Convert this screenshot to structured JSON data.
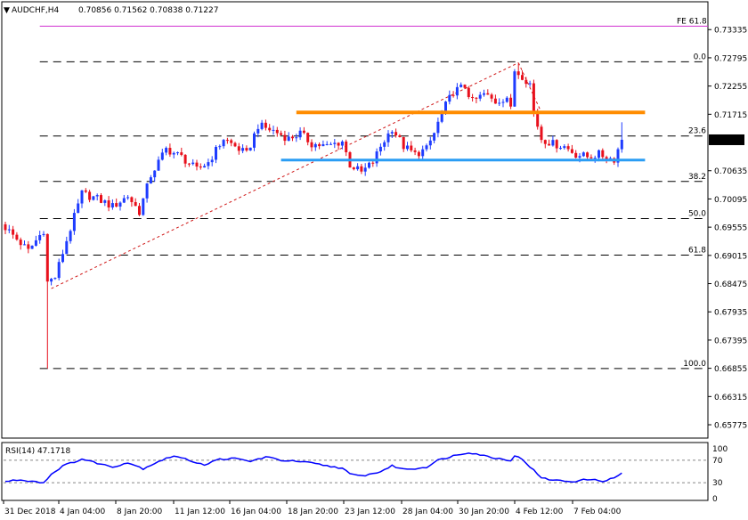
{
  "header": {
    "symbol": "AUDCHF,H4",
    "ohlc": "0.70856 0.71562 0.70838 0.71227"
  },
  "colors": {
    "bull": "#1e3cff",
    "bear": "#e8101c",
    "support": "#2a9df4",
    "resistance": "#ff8c00",
    "fe_line": "#d030d0",
    "trendline": "#d01818",
    "rsi_line": "#0000ff",
    "price_badge_bg": "#000000"
  },
  "chart_data": [
    {
      "type": "candlestick",
      "title": "AUDCHF,H4 0.70856 0.71562 0.70838 0.71227",
      "ylim": [
        0.6552,
        0.7385
      ],
      "yticks": [
        "0.73335",
        "0.72795",
        "0.72255",
        "0.71715",
        "0.71227",
        "0.70635",
        "0.70095",
        "0.69555",
        "0.69015",
        "0.68475",
        "0.67935",
        "0.67395",
        "0.66855",
        "0.66315",
        "0.65775"
      ],
      "xticks": [
        "31 Dec 2018",
        "4 Jan 04:00",
        "8 Jan 20:00",
        "11 Jan 12:00",
        "16 Jan 04:00",
        "18 Jan 20:00",
        "23 Jan 12:00",
        "28 Jan 04:00",
        "30 Jan 20:00",
        "4 Feb 12:00",
        "7 Feb 04:00"
      ],
      "last_price": "0.71227",
      "candle_count": 162,
      "close_anchors": [
        [
          0,
          0.6955
        ],
        [
          6,
          0.691
        ],
        [
          10,
          0.695
        ],
        [
          11,
          0.685
        ],
        [
          13,
          0.686
        ],
        [
          16,
          0.693
        ],
        [
          20,
          0.702
        ],
        [
          24,
          0.701
        ],
        [
          28,
          0.6995
        ],
        [
          32,
          0.7015
        ],
        [
          35,
          0.6985
        ],
        [
          38,
          0.7055
        ],
        [
          42,
          0.7105
        ],
        [
          46,
          0.709
        ],
        [
          50,
          0.7065
        ],
        [
          53,
          0.708
        ],
        [
          57,
          0.7125
        ],
        [
          60,
          0.711
        ],
        [
          63,
          0.7095
        ],
        [
          66,
          0.715
        ],
        [
          70,
          0.714
        ],
        [
          74,
          0.7125
        ],
        [
          77,
          0.7135
        ],
        [
          80,
          0.7115
        ],
        [
          84,
          0.711
        ],
        [
          88,
          0.712
        ],
        [
          90,
          0.7075
        ],
        [
          93,
          0.706
        ],
        [
          96,
          0.708
        ],
        [
          98,
          0.711
        ],
        [
          101,
          0.7145
        ],
        [
          104,
          0.711
        ],
        [
          107,
          0.7095
        ],
        [
          110,
          0.7105
        ],
        [
          112,
          0.7135
        ],
        [
          114,
          0.7175
        ],
        [
          117,
          0.7215
        ],
        [
          120,
          0.7225
        ],
        [
          122,
          0.7195
        ],
        [
          125,
          0.721
        ],
        [
          128,
          0.7195
        ],
        [
          131,
          0.7205
        ],
        [
          132,
          0.718
        ],
        [
          133,
          0.7255
        ],
        [
          135,
          0.7245
        ],
        [
          137,
          0.723
        ],
        [
          138,
          0.7175
        ],
        [
          140,
          0.7125
        ],
        [
          143,
          0.7115
        ],
        [
          146,
          0.711
        ],
        [
          149,
          0.7095
        ],
        [
          152,
          0.709
        ],
        [
          155,
          0.7095
        ],
        [
          158,
          0.7087
        ],
        [
          159,
          0.7086
        ],
        [
          161,
          0.71227
        ]
      ],
      "extreme_lows": [
        [
          11,
          0.6685
        ]
      ],
      "extreme_highs": [
        [
          134,
          0.7268
        ],
        [
          161,
          0.71562
        ]
      ],
      "horizontal_levels": [
        {
          "label": "FE 61.8",
          "value": 0.734
        },
        {
          "label": "0.0",
          "value": 0.7272
        },
        {
          "label": "23.6",
          "value": 0.713
        },
        {
          "label": "38.2",
          "value": 0.7043
        },
        {
          "label": "50.0",
          "value": 0.6972
        },
        {
          "label": "61.8",
          "value": 0.6902
        },
        {
          "label": "100.0",
          "value": 0.6685
        }
      ],
      "resistance_zone": {
        "value": 0.7175,
        "from_index": 76,
        "to_index": 168
      },
      "support_zone": {
        "value": 0.7084,
        "from_index": 72,
        "to_index": 168
      },
      "trendlines": [
        {
          "from": [
            12,
            0.6838
          ],
          "to": [
            134,
            0.727
          ]
        },
        {
          "from": [
            134,
            0.727
          ],
          "to": [
            140,
            0.7175
          ]
        }
      ]
    },
    {
      "type": "line",
      "title": "RSI(14) 47.1718",
      "ylim": [
        0,
        100
      ],
      "yticks": [
        "100",
        "70",
        "30",
        "0"
      ],
      "levels": [
        70,
        30
      ],
      "value_anchors": [
        [
          0,
          32
        ],
        [
          3,
          35
        ],
        [
          7,
          33
        ],
        [
          10,
          30
        ],
        [
          12,
          45
        ],
        [
          15,
          60
        ],
        [
          20,
          72
        ],
        [
          24,
          65
        ],
        [
          28,
          58
        ],
        [
          32,
          66
        ],
        [
          36,
          55
        ],
        [
          40,
          68
        ],
        [
          44,
          78
        ],
        [
          48,
          70
        ],
        [
          52,
          62
        ],
        [
          56,
          72
        ],
        [
          60,
          73
        ],
        [
          64,
          68
        ],
        [
          68,
          76
        ],
        [
          72,
          70
        ],
        [
          76,
          68
        ],
        [
          80,
          65
        ],
        [
          84,
          60
        ],
        [
          88,
          56
        ],
        [
          90,
          45
        ],
        [
          93,
          42
        ],
        [
          96,
          46
        ],
        [
          98,
          50
        ],
        [
          101,
          60
        ],
        [
          104,
          54
        ],
        [
          107,
          55
        ],
        [
          110,
          58
        ],
        [
          113,
          70
        ],
        [
          117,
          78
        ],
        [
          121,
          84
        ],
        [
          124,
          80
        ],
        [
          127,
          75
        ],
        [
          130,
          72
        ],
        [
          132,
          70
        ],
        [
          133,
          78
        ],
        [
          135,
          72
        ],
        [
          138,
          52
        ],
        [
          140,
          38
        ],
        [
          144,
          34
        ],
        [
          148,
          32
        ],
        [
          152,
          36
        ],
        [
          156,
          33
        ],
        [
          159,
          38
        ],
        [
          161,
          47.17
        ]
      ]
    }
  ]
}
